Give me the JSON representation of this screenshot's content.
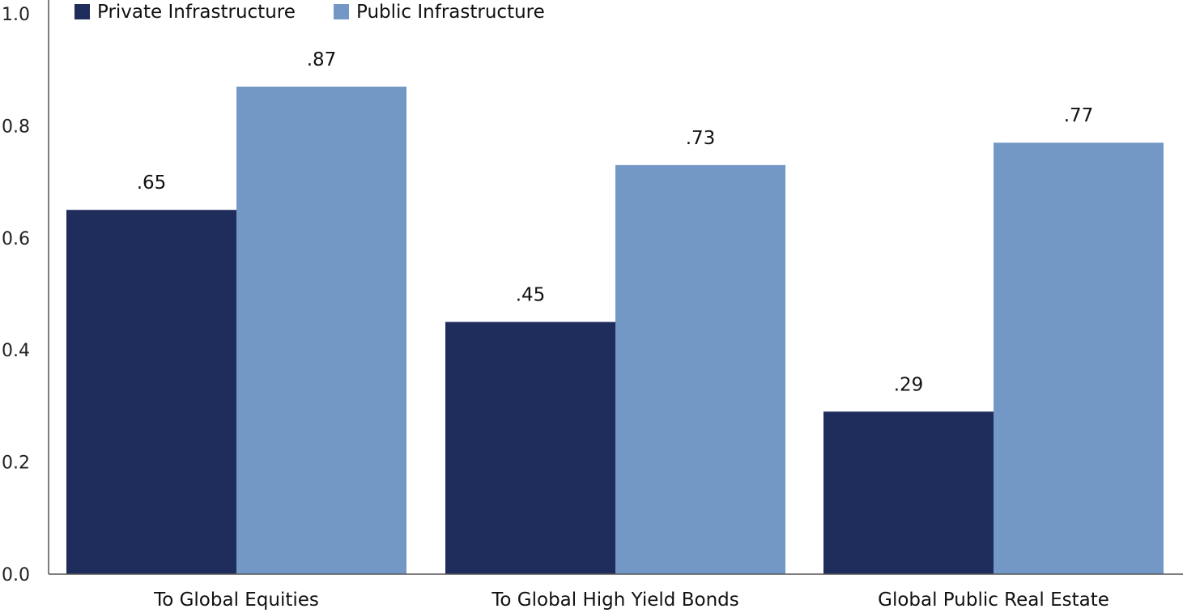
{
  "chart_data": {
    "type": "bar",
    "title": "",
    "xlabel": "",
    "ylabel": "",
    "ylim": [
      0,
      1.0
    ],
    "yticks": [
      0.0,
      0.2,
      0.4,
      0.6,
      0.8,
      1.0
    ],
    "ytick_labels": [
      "0.0",
      "0.2",
      "0.4",
      "0.6",
      "0.8",
      "1.0"
    ],
    "grid": false,
    "legend_position": "top-left",
    "categories": [
      "To Global Equities",
      "To Global High Yield Bonds",
      "Global Public Real Estate"
    ],
    "series": [
      {
        "name": "Private Infrastructure",
        "color": "#1f2d5c",
        "values": [
          0.65,
          0.45,
          0.29
        ],
        "labels": [
          ".65",
          ".45",
          ".29"
        ]
      },
      {
        "name": "Public Infrastructure",
        "color": "#7398c6",
        "values": [
          0.87,
          0.73,
          0.77
        ],
        "labels": [
          ".87",
          ".73",
          ".77"
        ]
      }
    ]
  }
}
